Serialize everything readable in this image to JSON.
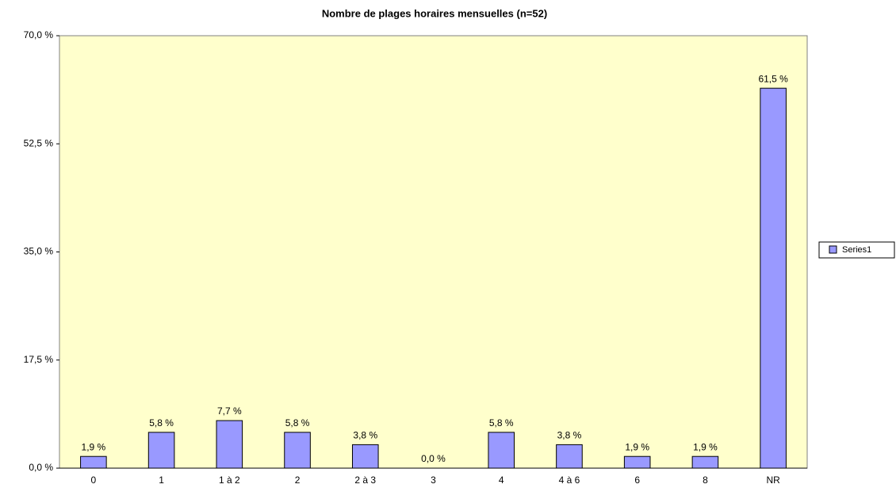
{
  "chart_data": {
    "type": "bar",
    "title": "Nombre de plages horaires mensuelles (n=52)",
    "categories": [
      "0",
      "1",
      "1 à 2",
      "2",
      "2 à 3",
      "3",
      "4",
      "4 à 6",
      "6",
      "8",
      "NR"
    ],
    "series": [
      {
        "name": "Series1",
        "color": "#9999ff",
        "values": [
          1.9,
          5.8,
          7.7,
          5.8,
          3.8,
          0,
          5.8,
          3.8,
          1.9,
          1.9,
          61.5
        ],
        "value_labels": [
          "1,9 %",
          "5,8 %",
          "7,7 %",
          "5,8 %",
          "3,8 %",
          "0,0 %",
          "5,8 %",
          "3,8 %",
          "1,9 %",
          "1,9 %",
          "61,5 %"
        ]
      }
    ],
    "ylim": [
      0,
      70
    ],
    "yticks": [
      {
        "value": 0,
        "label": "0,0 %"
      },
      {
        "value": 17.5,
        "label": "17,5 %"
      },
      {
        "value": 35,
        "label": "35,0 %"
      },
      {
        "value": 52.5,
        "label": "52,5 %"
      },
      {
        "value": 70,
        "label": "70,0 %"
      }
    ],
    "legend": "right"
  }
}
